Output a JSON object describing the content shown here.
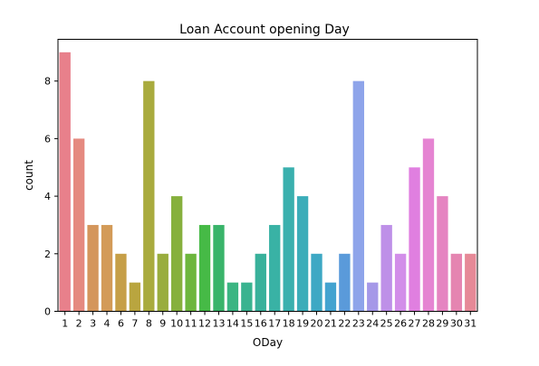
{
  "chart_data": {
    "type": "bar",
    "title": "Loan Account opening Day",
    "xlabel": "ODay",
    "ylabel": "count",
    "categories": [
      "1",
      "2",
      "3",
      "4",
      "6",
      "7",
      "8",
      "9",
      "10",
      "11",
      "12",
      "13",
      "14",
      "15",
      "16",
      "17",
      "18",
      "19",
      "20",
      "21",
      "22",
      "23",
      "24",
      "25",
      "26",
      "27",
      "28",
      "29",
      "30",
      "31"
    ],
    "values": [
      9,
      6,
      3,
      3,
      2,
      1,
      8,
      2,
      4,
      2,
      3,
      3,
      1,
      1,
      2,
      3,
      5,
      4,
      2,
      1,
      2,
      8,
      1,
      3,
      2,
      5,
      6,
      4,
      2,
      2
    ],
    "ylim": [
      0,
      9.45
    ],
    "yticks": [
      0,
      2,
      4,
      6,
      8
    ],
    "grid": false,
    "colors": [
      "#e8808b",
      "#e58a80",
      "#d4965c",
      "#d39b58",
      "#c69f48",
      "#b9a53f",
      "#a9ab3e",
      "#99ad3e",
      "#86b03d",
      "#6db63d",
      "#46ba46",
      "#39b46a",
      "#3bb582",
      "#3ab390",
      "#39b19b",
      "#39b2a5",
      "#3ab0ae",
      "#3badb9",
      "#3ea8c4",
      "#43a3d0",
      "#5a9ada",
      "#8ea4ea",
      "#a598e8",
      "#be90e8",
      "#d28ee9",
      "#e07fe0",
      "#e584d2",
      "#e584c1",
      "#e585b1",
      "#e68997"
    ]
  }
}
